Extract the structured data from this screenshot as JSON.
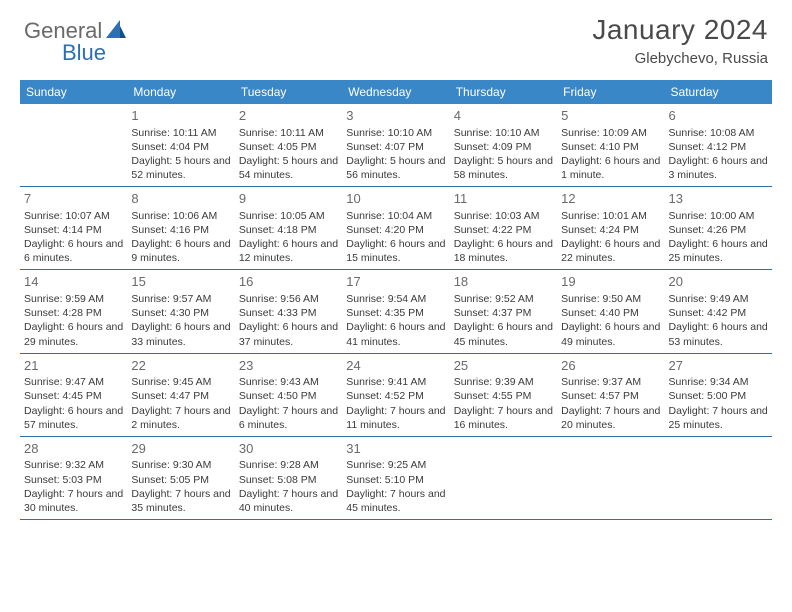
{
  "logo": {
    "part1": "General",
    "part2": "Blue"
  },
  "header": {
    "month": "January 2024",
    "location": "Glebychevo, Russia"
  },
  "colors": {
    "brand": "#3a87c7",
    "rule": "#2d6fb3",
    "text": "#3a3a3a",
    "muted": "#6a6a6a"
  },
  "days_of_week": [
    "Sunday",
    "Monday",
    "Tuesday",
    "Wednesday",
    "Thursday",
    "Friday",
    "Saturday"
  ],
  "weeks": [
    [
      {
        "n": "",
        "sunrise": "",
        "sunset": "",
        "daylight": ""
      },
      {
        "n": "1",
        "sunrise": "Sunrise: 10:11 AM",
        "sunset": "Sunset: 4:04 PM",
        "daylight": "Daylight: 5 hours and 52 minutes."
      },
      {
        "n": "2",
        "sunrise": "Sunrise: 10:11 AM",
        "sunset": "Sunset: 4:05 PM",
        "daylight": "Daylight: 5 hours and 54 minutes."
      },
      {
        "n": "3",
        "sunrise": "Sunrise: 10:10 AM",
        "sunset": "Sunset: 4:07 PM",
        "daylight": "Daylight: 5 hours and 56 minutes."
      },
      {
        "n": "4",
        "sunrise": "Sunrise: 10:10 AM",
        "sunset": "Sunset: 4:09 PM",
        "daylight": "Daylight: 5 hours and 58 minutes."
      },
      {
        "n": "5",
        "sunrise": "Sunrise: 10:09 AM",
        "sunset": "Sunset: 4:10 PM",
        "daylight": "Daylight: 6 hours and 1 minute."
      },
      {
        "n": "6",
        "sunrise": "Sunrise: 10:08 AM",
        "sunset": "Sunset: 4:12 PM",
        "daylight": "Daylight: 6 hours and 3 minutes."
      }
    ],
    [
      {
        "n": "7",
        "sunrise": "Sunrise: 10:07 AM",
        "sunset": "Sunset: 4:14 PM",
        "daylight": "Daylight: 6 hours and 6 minutes."
      },
      {
        "n": "8",
        "sunrise": "Sunrise: 10:06 AM",
        "sunset": "Sunset: 4:16 PM",
        "daylight": "Daylight: 6 hours and 9 minutes."
      },
      {
        "n": "9",
        "sunrise": "Sunrise: 10:05 AM",
        "sunset": "Sunset: 4:18 PM",
        "daylight": "Daylight: 6 hours and 12 minutes."
      },
      {
        "n": "10",
        "sunrise": "Sunrise: 10:04 AM",
        "sunset": "Sunset: 4:20 PM",
        "daylight": "Daylight: 6 hours and 15 minutes."
      },
      {
        "n": "11",
        "sunrise": "Sunrise: 10:03 AM",
        "sunset": "Sunset: 4:22 PM",
        "daylight": "Daylight: 6 hours and 18 minutes."
      },
      {
        "n": "12",
        "sunrise": "Sunrise: 10:01 AM",
        "sunset": "Sunset: 4:24 PM",
        "daylight": "Daylight: 6 hours and 22 minutes."
      },
      {
        "n": "13",
        "sunrise": "Sunrise: 10:00 AM",
        "sunset": "Sunset: 4:26 PM",
        "daylight": "Daylight: 6 hours and 25 minutes."
      }
    ],
    [
      {
        "n": "14",
        "sunrise": "Sunrise: 9:59 AM",
        "sunset": "Sunset: 4:28 PM",
        "daylight": "Daylight: 6 hours and 29 minutes."
      },
      {
        "n": "15",
        "sunrise": "Sunrise: 9:57 AM",
        "sunset": "Sunset: 4:30 PM",
        "daylight": "Daylight: 6 hours and 33 minutes."
      },
      {
        "n": "16",
        "sunrise": "Sunrise: 9:56 AM",
        "sunset": "Sunset: 4:33 PM",
        "daylight": "Daylight: 6 hours and 37 minutes."
      },
      {
        "n": "17",
        "sunrise": "Sunrise: 9:54 AM",
        "sunset": "Sunset: 4:35 PM",
        "daylight": "Daylight: 6 hours and 41 minutes."
      },
      {
        "n": "18",
        "sunrise": "Sunrise: 9:52 AM",
        "sunset": "Sunset: 4:37 PM",
        "daylight": "Daylight: 6 hours and 45 minutes."
      },
      {
        "n": "19",
        "sunrise": "Sunrise: 9:50 AM",
        "sunset": "Sunset: 4:40 PM",
        "daylight": "Daylight: 6 hours and 49 minutes."
      },
      {
        "n": "20",
        "sunrise": "Sunrise: 9:49 AM",
        "sunset": "Sunset: 4:42 PM",
        "daylight": "Daylight: 6 hours and 53 minutes."
      }
    ],
    [
      {
        "n": "21",
        "sunrise": "Sunrise: 9:47 AM",
        "sunset": "Sunset: 4:45 PM",
        "daylight": "Daylight: 6 hours and 57 minutes."
      },
      {
        "n": "22",
        "sunrise": "Sunrise: 9:45 AM",
        "sunset": "Sunset: 4:47 PM",
        "daylight": "Daylight: 7 hours and 2 minutes."
      },
      {
        "n": "23",
        "sunrise": "Sunrise: 9:43 AM",
        "sunset": "Sunset: 4:50 PM",
        "daylight": "Daylight: 7 hours and 6 minutes."
      },
      {
        "n": "24",
        "sunrise": "Sunrise: 9:41 AM",
        "sunset": "Sunset: 4:52 PM",
        "daylight": "Daylight: 7 hours and 11 minutes."
      },
      {
        "n": "25",
        "sunrise": "Sunrise: 9:39 AM",
        "sunset": "Sunset: 4:55 PM",
        "daylight": "Daylight: 7 hours and 16 minutes."
      },
      {
        "n": "26",
        "sunrise": "Sunrise: 9:37 AM",
        "sunset": "Sunset: 4:57 PM",
        "daylight": "Daylight: 7 hours and 20 minutes."
      },
      {
        "n": "27",
        "sunrise": "Sunrise: 9:34 AM",
        "sunset": "Sunset: 5:00 PM",
        "daylight": "Daylight: 7 hours and 25 minutes."
      }
    ],
    [
      {
        "n": "28",
        "sunrise": "Sunrise: 9:32 AM",
        "sunset": "Sunset: 5:03 PM",
        "daylight": "Daylight: 7 hours and 30 minutes."
      },
      {
        "n": "29",
        "sunrise": "Sunrise: 9:30 AM",
        "sunset": "Sunset: 5:05 PM",
        "daylight": "Daylight: 7 hours and 35 minutes."
      },
      {
        "n": "30",
        "sunrise": "Sunrise: 9:28 AM",
        "sunset": "Sunset: 5:08 PM",
        "daylight": "Daylight: 7 hours and 40 minutes."
      },
      {
        "n": "31",
        "sunrise": "Sunrise: 9:25 AM",
        "sunset": "Sunset: 5:10 PM",
        "daylight": "Daylight: 7 hours and 45 minutes."
      },
      {
        "n": "",
        "sunrise": "",
        "sunset": "",
        "daylight": ""
      },
      {
        "n": "",
        "sunrise": "",
        "sunset": "",
        "daylight": ""
      },
      {
        "n": "",
        "sunrise": "",
        "sunset": "",
        "daylight": ""
      }
    ]
  ]
}
